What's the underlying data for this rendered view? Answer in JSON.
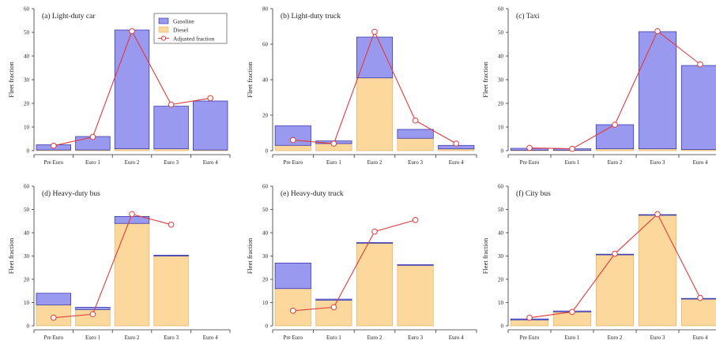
{
  "legend": {
    "items": [
      {
        "key": "gasoline",
        "label": "Gasoline"
      },
      {
        "key": "diesel",
        "label": "Diesel"
      },
      {
        "key": "adjusted",
        "label": "Adjusted fraction"
      }
    ]
  },
  "colors": {
    "gasoline": "#9999f0",
    "gasoline_edge": "#2a2aa8",
    "diesel": "#fcd89c",
    "diesel_edge": "#e2b469",
    "line": "#e23a3a",
    "marker_fill": "#ffffff",
    "axis": "#333333"
  },
  "chart_data": [
    {
      "type": "bar",
      "title": "(a) Light-duty car",
      "ylabel": "Fleet fraction",
      "categories": [
        "Pre Euro",
        "Euro 1",
        "Euro 2",
        "Euro 3",
        "Euro 4"
      ],
      "ylim": [
        0,
        60
      ],
      "yticks": [
        0,
        10,
        20,
        30,
        40,
        50,
        60
      ],
      "stacked": true,
      "series": [
        {
          "name": "Diesel",
          "key": "diesel",
          "values": [
            0.3,
            0.3,
            0.8,
            0.8,
            0.3
          ]
        },
        {
          "name": "Gasoline",
          "key": "gasoline",
          "values": [
            2.2,
            5.7,
            50.2,
            18.0,
            20.7
          ]
        }
      ],
      "line": {
        "name": "Adjusted fraction",
        "values": [
          2.1,
          5.8,
          50.5,
          19.5,
          22.2
        ]
      },
      "show_legend": true
    },
    {
      "type": "bar",
      "title": "(b) Light-duty truck",
      "ylabel": "Fleet fraction",
      "categories": [
        "Pre Euro",
        "Euro 1",
        "Euro 2",
        "Euro 3",
        "Euro 4"
      ],
      "ylim": [
        0,
        80
      ],
      "yticks": [
        0,
        20,
        40,
        60,
        80
      ],
      "stacked": true,
      "series": [
        {
          "name": "Diesel",
          "key": "diesel",
          "values": [
            3,
            4,
            41,
            7,
            1
          ]
        },
        {
          "name": "Gasoline",
          "key": "gasoline",
          "values": [
            11,
            1.5,
            23,
            5,
            2
          ]
        }
      ],
      "line": {
        "name": "Adjusted fraction",
        "values": [
          6,
          4,
          67,
          17,
          4
        ]
      },
      "show_legend": false
    },
    {
      "type": "bar",
      "title": "(c) Taxi",
      "ylabel": "Fleet fraction",
      "categories": [
        "Pre Euro",
        "Euro 1",
        "Euro 2",
        "Euro 3",
        "Euro 4"
      ],
      "ylim": [
        0,
        60
      ],
      "yticks": [
        0,
        10,
        20,
        30,
        40,
        50,
        60
      ],
      "stacked": true,
      "series": [
        {
          "name": "Diesel",
          "key": "diesel",
          "values": [
            0.2,
            0.2,
            0.8,
            0.8,
            0.5
          ]
        },
        {
          "name": "Gasoline",
          "key": "gasoline",
          "values": [
            0.8,
            0.6,
            10.2,
            49.5,
            35.5
          ]
        }
      ],
      "line": {
        "name": "Adjusted fraction",
        "values": [
          1.2,
          0.8,
          11.0,
          50.5,
          36.5
        ]
      },
      "show_legend": false
    },
    {
      "type": "bar",
      "title": "(d) Heavy-duty bus",
      "ylabel": "Fleet fraction",
      "categories": [
        "Pre Euro",
        "Euro 1",
        "Euro 2",
        "Euro 3",
        "Euro 4"
      ],
      "ylim": [
        0,
        60
      ],
      "yticks": [
        0,
        10,
        20,
        30,
        40,
        50,
        60
      ],
      "stacked": true,
      "series": [
        {
          "name": "Diesel",
          "key": "diesel",
          "values": [
            9,
            7,
            44,
            30,
            0
          ]
        },
        {
          "name": "Gasoline",
          "key": "gasoline",
          "values": [
            5,
            1,
            3,
            0.4,
            0
          ]
        }
      ],
      "line": {
        "name": "Adjusted fraction",
        "values": [
          3.5,
          5.0,
          48.0,
          43.5,
          null
        ]
      },
      "show_legend": false
    },
    {
      "type": "bar",
      "title": "(e) Heavy-duty truck",
      "ylabel": "Fleet fraction",
      "categories": [
        "Pre Euro",
        "Euro 1",
        "Euro 2",
        "Euro 3",
        "Euro 4"
      ],
      "ylim": [
        0,
        60
      ],
      "yticks": [
        0,
        10,
        20,
        30,
        40,
        50,
        60
      ],
      "stacked": true,
      "series": [
        {
          "name": "Diesel",
          "key": "diesel",
          "values": [
            16,
            11,
            35.5,
            26,
            0
          ]
        },
        {
          "name": "Gasoline",
          "key": "gasoline",
          "values": [
            11,
            0.5,
            0.3,
            0.3,
            0
          ]
        }
      ],
      "line": {
        "name": "Adjusted fraction",
        "values": [
          6.5,
          8.0,
          40.5,
          45.5,
          null
        ]
      },
      "show_legend": false
    },
    {
      "type": "bar",
      "title": "(f) City bus",
      "ylabel": "Fleet fraction",
      "categories": [
        "Pre Euro",
        "Euro 1",
        "Euro 2",
        "Euro 3",
        "Euro 4"
      ],
      "ylim": [
        0,
        60
      ],
      "yticks": [
        0,
        10,
        20,
        30,
        40,
        50,
        60
      ],
      "stacked": true,
      "series": [
        {
          "name": "Diesel",
          "key": "diesel",
          "values": [
            2.5,
            6,
            30.5,
            47.5,
            11.5
          ]
        },
        {
          "name": "Gasoline",
          "key": "gasoline",
          "values": [
            0.5,
            0.4,
            0.3,
            0.3,
            0.3
          ]
        }
      ],
      "line": {
        "name": "Adjusted fraction",
        "values": [
          3.5,
          6.0,
          31.0,
          48.0,
          12.0
        ]
      },
      "show_legend": false
    }
  ]
}
